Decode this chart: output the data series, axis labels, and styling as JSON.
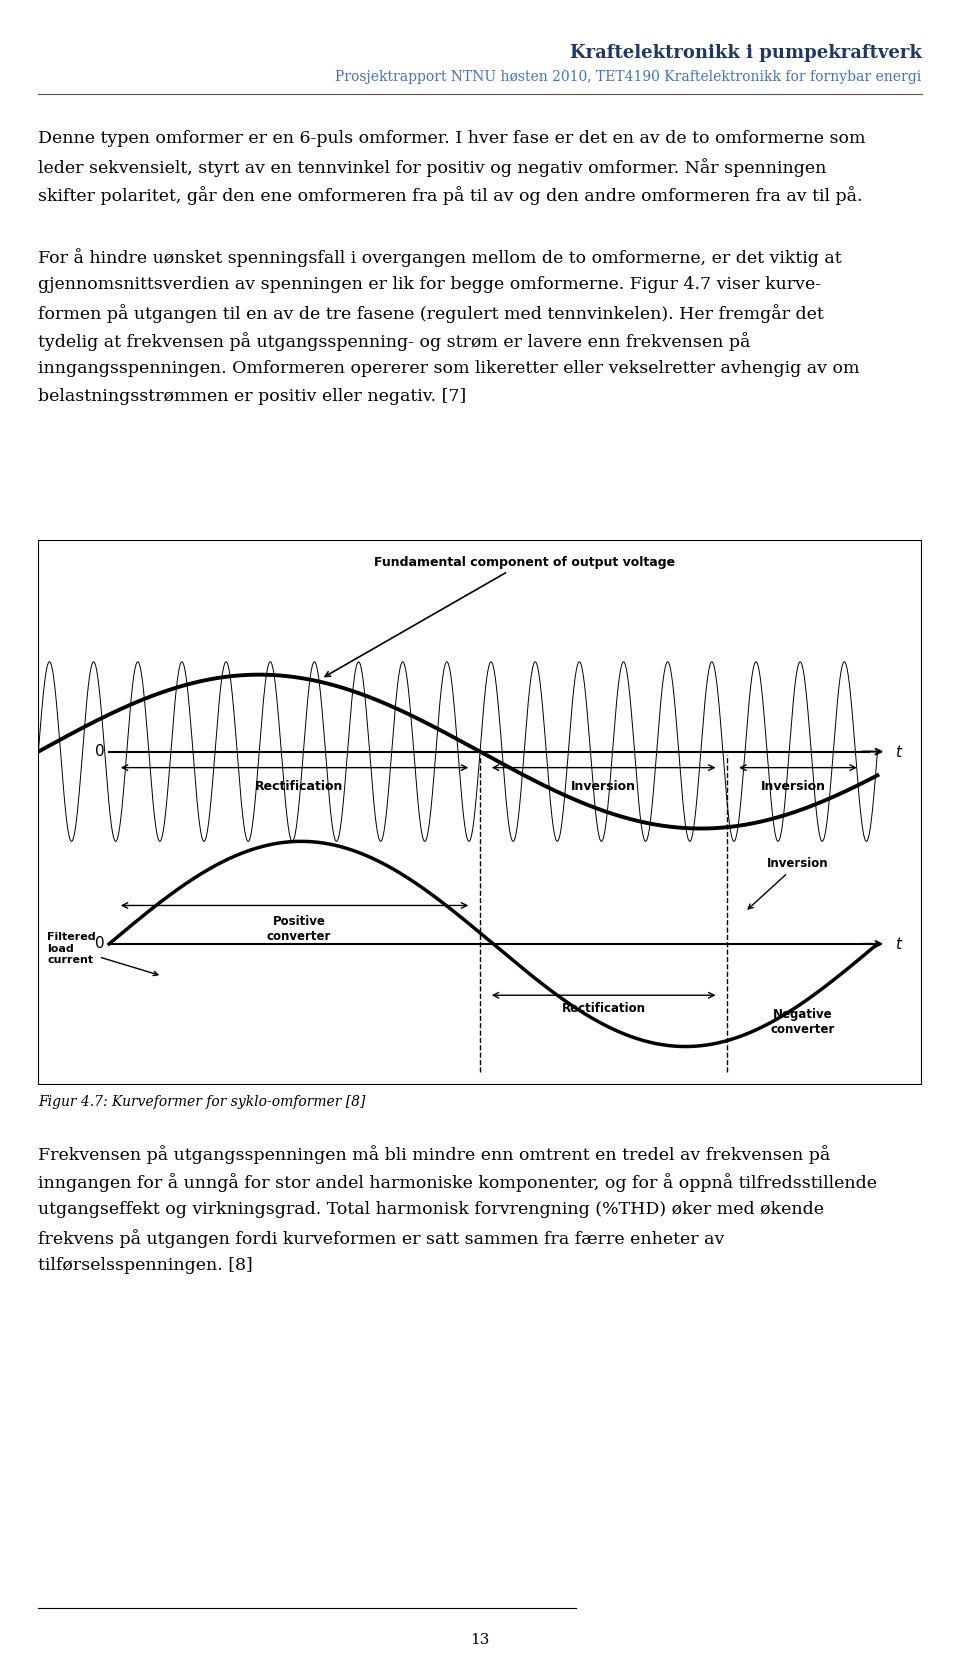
{
  "title_right": "Kraftelektronikk i pumpekraftverk",
  "subtitle": "Prosjektrapport NTNU høsten 2010, TET4190 Kraftelektronikk for fornybar energi",
  "title_color": "#1F3864",
  "subtitle_color": "#4472C4",
  "para1": "Denne typen omformer er en 6-puls omformer. I hver fase er det en av de to omformerne som leder sekvensielt, styrt av en tennvinkel for positiv og negativ omformer. Når spenningen skifter polaritet, går den ene omformeren fra på til av og den andre omformeren fra av til på.",
  "para2": "For å hindre uønsket spenningsfall i overgangen mellom de to omformerne, er det viktig at gjennomsnittsverdien av spenningen er lik for begge omformerne. Figur 4.7 viser kurveformen på utgangen til en av de tre fasene (regulert med tennvinkelen). Her fremgår det tydelig at frekvensen på utgangsspenning- og strøm er lavere enn frekvensen på inngangsspenningen. Omformeren opererer som likeretter eller vekselretter avhengig av om belastningsstrømmen er positiv eller negativ. [7]",
  "fig_caption": "Figur 4.7: Kurveformer for syklo-omformer [8]",
  "para3": "Frekvensen på utgangsspenningen må bli mindre enn omtrent en tredel av frekvensen på inngangen for å unngå for stor andel harmoniske komponenter, og for å oppnå tilfredsstillende utgangseffekt og virkningsgrad. Total harmonisk forvrengning (%THD) øker med økende frekvens på utgangen fordi kurveformen er satt sammen fra færre enheter av tilførselsspenningen. [8]",
  "page_number": "13",
  "bg_color": "#ffffff",
  "text_color": "#000000"
}
